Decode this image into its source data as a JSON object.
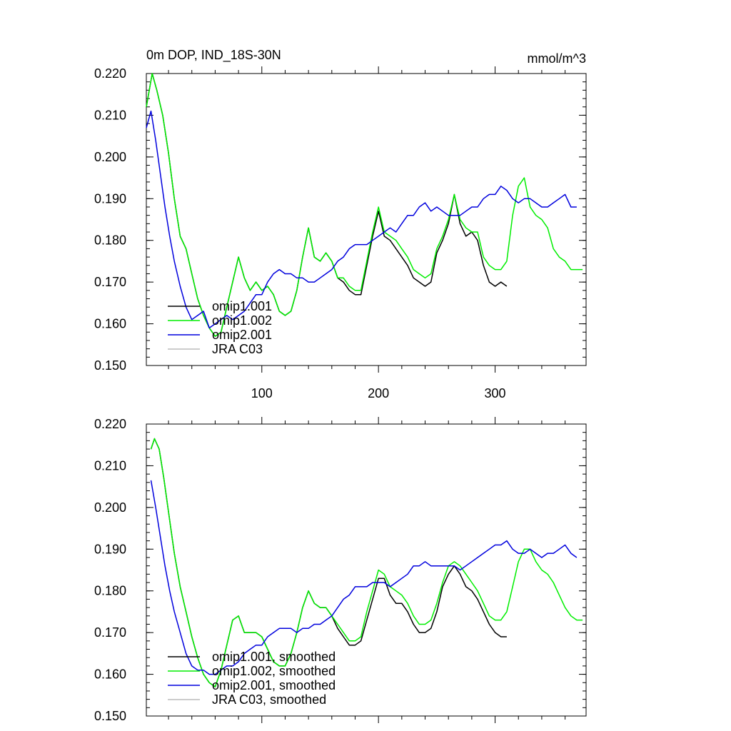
{
  "chart_data": [
    {
      "type": "line",
      "title": "0m DOP, IND_18S-30N",
      "units": "mmol/m^3",
      "xlim": [
        1,
        378
      ],
      "ylim": [
        0.15,
        0.22
      ],
      "xticks": [
        100,
        200,
        300
      ],
      "xtick_labels": [
        "100",
        "200",
        "300"
      ],
      "yticks": [
        0.15,
        0.16,
        0.17,
        0.18,
        0.19,
        0.2,
        0.21,
        0.22
      ],
      "ytick_labels": [
        "0.150",
        "0.160",
        "0.170",
        "0.180",
        "0.190",
        "0.200",
        "0.210",
        "0.220"
      ],
      "legend_position": "bottom-left",
      "series": [
        {
          "name": "omip1.001",
          "color": "#000000",
          "x": [
            1,
            6,
            10,
            15,
            20,
            25,
            30,
            35,
            40,
            45,
            50,
            55,
            60,
            65,
            70,
            75,
            80,
            85,
            90,
            95,
            100,
            105,
            110,
            115,
            120,
            125,
            130,
            135,
            140,
            145,
            150,
            155,
            160,
            165,
            170,
            175,
            180,
            185,
            190,
            195,
            200,
            205,
            210,
            215,
            220,
            225,
            230,
            235,
            240,
            245,
            250,
            255,
            260,
            265,
            270,
            275,
            280,
            285,
            290,
            295,
            300,
            305,
            310
          ],
          "y": [
            0.212,
            0.22,
            0.216,
            0.21,
            0.201,
            0.19,
            0.181,
            0.178,
            0.172,
            0.166,
            0.162,
            0.159,
            0.157,
            0.158,
            0.164,
            0.17,
            0.176,
            0.171,
            0.168,
            0.17,
            0.168,
            0.169,
            0.167,
            0.163,
            0.162,
            0.163,
            0.168,
            0.176,
            0.183,
            0.176,
            0.175,
            0.177,
            0.175,
            0.171,
            0.17,
            0.168,
            0.167,
            0.167,
            0.174,
            0.181,
            0.187,
            0.181,
            0.18,
            0.178,
            0.176,
            0.174,
            0.171,
            0.17,
            0.169,
            0.17,
            0.177,
            0.18,
            0.184,
            0.191,
            0.184,
            0.181,
            0.182,
            0.18,
            0.174,
            0.17,
            0.169,
            0.17,
            0.169
          ]
        },
        {
          "name": "omip1.002",
          "color": "#00ee00",
          "x": [
            1,
            6,
            10,
            15,
            20,
            25,
            30,
            35,
            40,
            45,
            50,
            55,
            60,
            65,
            70,
            75,
            80,
            85,
            90,
            95,
            100,
            105,
            110,
            115,
            120,
            125,
            130,
            135,
            140,
            145,
            150,
            155,
            160,
            165,
            170,
            175,
            180,
            185,
            190,
            195,
            200,
            205,
            210,
            215,
            220,
            225,
            230,
            235,
            240,
            245,
            250,
            255,
            260,
            265,
            270,
            275,
            280,
            285,
            290,
            295,
            300,
            305,
            310,
            315,
            320,
            325,
            330,
            335,
            340,
            345,
            350,
            355,
            360,
            365,
            370,
            375
          ],
          "y": [
            0.212,
            0.22,
            0.216,
            0.21,
            0.201,
            0.19,
            0.181,
            0.178,
            0.172,
            0.166,
            0.162,
            0.159,
            0.157,
            0.158,
            0.164,
            0.17,
            0.176,
            0.171,
            0.168,
            0.17,
            0.168,
            0.169,
            0.167,
            0.163,
            0.162,
            0.163,
            0.168,
            0.176,
            0.183,
            0.176,
            0.175,
            0.177,
            0.175,
            0.171,
            0.171,
            0.169,
            0.168,
            0.168,
            0.175,
            0.182,
            0.188,
            0.182,
            0.181,
            0.18,
            0.178,
            0.176,
            0.173,
            0.172,
            0.171,
            0.172,
            0.178,
            0.181,
            0.185,
            0.191,
            0.185,
            0.183,
            0.182,
            0.182,
            0.176,
            0.174,
            0.173,
            0.173,
            0.175,
            0.186,
            0.193,
            0.195,
            0.188,
            0.186,
            0.185,
            0.183,
            0.178,
            0.176,
            0.175,
            0.173,
            0.173,
            0.173
          ]
        },
        {
          "name": "omip2.001",
          "color": "#0000dd",
          "x": [
            1,
            5,
            9,
            13,
            17,
            21,
            25,
            30,
            35,
            40,
            45,
            50,
            55,
            60,
            65,
            70,
            75,
            80,
            85,
            90,
            95,
            100,
            105,
            110,
            115,
            120,
            125,
            130,
            135,
            140,
            145,
            150,
            155,
            160,
            165,
            170,
            175,
            180,
            185,
            190,
            195,
            200,
            205,
            210,
            215,
            220,
            225,
            230,
            235,
            240,
            245,
            250,
            255,
            260,
            265,
            270,
            275,
            280,
            285,
            290,
            295,
            300,
            305,
            310,
            315,
            320,
            325,
            330,
            335,
            340,
            345,
            350,
            355,
            360,
            365,
            370
          ],
          "y": [
            0.207,
            0.211,
            0.204,
            0.196,
            0.188,
            0.181,
            0.175,
            0.169,
            0.164,
            0.161,
            0.162,
            0.163,
            0.159,
            0.16,
            0.161,
            0.162,
            0.161,
            0.162,
            0.163,
            0.165,
            0.167,
            0.167,
            0.17,
            0.172,
            0.173,
            0.172,
            0.172,
            0.171,
            0.171,
            0.17,
            0.17,
            0.171,
            0.172,
            0.173,
            0.175,
            0.176,
            0.178,
            0.179,
            0.179,
            0.179,
            0.18,
            0.181,
            0.182,
            0.183,
            0.182,
            0.184,
            0.186,
            0.186,
            0.188,
            0.189,
            0.187,
            0.188,
            0.187,
            0.186,
            0.186,
            0.186,
            0.187,
            0.188,
            0.188,
            0.19,
            0.191,
            0.191,
            0.193,
            0.192,
            0.19,
            0.189,
            0.19,
            0.19,
            0.189,
            0.188,
            0.188,
            0.189,
            0.19,
            0.191,
            0.188,
            0.188
          ]
        },
        {
          "name": "JRA C03",
          "color": "#bbbbbb",
          "x": [],
          "y": []
        }
      ]
    },
    {
      "type": "line",
      "xlim": [
        1,
        378
      ],
      "ylim": [
        0.15,
        0.22
      ],
      "xticks": [
        100,
        200,
        300
      ],
      "yticks": [
        0.15,
        0.16,
        0.17,
        0.18,
        0.19,
        0.2,
        0.21,
        0.22
      ],
      "ytick_labels": [
        "0.150",
        "0.160",
        "0.170",
        "0.180",
        "0.190",
        "0.200",
        "0.210",
        "0.220"
      ],
      "legend_position": "bottom-left",
      "series": [
        {
          "name": "omip1.001, smoothed",
          "color": "#000000",
          "x": [
            5,
            8,
            12,
            16,
            20,
            25,
            30,
            35,
            40,
            45,
            50,
            55,
            60,
            65,
            70,
            75,
            80,
            85,
            90,
            95,
            100,
            105,
            110,
            115,
            120,
            125,
            130,
            135,
            140,
            145,
            150,
            155,
            160,
            165,
            170,
            175,
            180,
            185,
            190,
            195,
            200,
            205,
            210,
            215,
            220,
            225,
            230,
            235,
            240,
            245,
            250,
            255,
            260,
            265,
            270,
            275,
            280,
            285,
            290,
            295,
            300,
            305,
            310
          ],
          "y": [
            0.214,
            0.2165,
            0.214,
            0.207,
            0.199,
            0.189,
            0.181,
            0.175,
            0.169,
            0.164,
            0.16,
            0.158,
            0.157,
            0.161,
            0.167,
            0.173,
            0.174,
            0.17,
            0.17,
            0.17,
            0.169,
            0.166,
            0.163,
            0.162,
            0.162,
            0.165,
            0.17,
            0.176,
            0.18,
            0.177,
            0.176,
            0.176,
            0.174,
            0.171,
            0.169,
            0.167,
            0.167,
            0.168,
            0.173,
            0.178,
            0.183,
            0.183,
            0.179,
            0.177,
            0.177,
            0.175,
            0.172,
            0.17,
            0.17,
            0.171,
            0.175,
            0.181,
            0.184,
            0.186,
            0.184,
            0.181,
            0.18,
            0.178,
            0.175,
            0.172,
            0.17,
            0.169,
            0.169
          ]
        },
        {
          "name": "omip1.002, smoothed",
          "color": "#00ee00",
          "x": [
            5,
            8,
            12,
            16,
            20,
            25,
            30,
            35,
            40,
            45,
            50,
            55,
            60,
            65,
            70,
            75,
            80,
            85,
            90,
            95,
            100,
            105,
            110,
            115,
            120,
            125,
            130,
            135,
            140,
            145,
            150,
            155,
            160,
            165,
            170,
            175,
            180,
            185,
            190,
            195,
            200,
            205,
            210,
            215,
            220,
            225,
            230,
            235,
            240,
            245,
            250,
            255,
            260,
            265,
            270,
            275,
            280,
            285,
            290,
            295,
            300,
            305,
            310,
            315,
            320,
            325,
            330,
            335,
            340,
            345,
            350,
            355,
            360,
            365,
            370,
            375
          ],
          "y": [
            0.214,
            0.2165,
            0.214,
            0.207,
            0.199,
            0.189,
            0.181,
            0.175,
            0.169,
            0.164,
            0.16,
            0.158,
            0.157,
            0.161,
            0.167,
            0.173,
            0.174,
            0.17,
            0.17,
            0.17,
            0.169,
            0.166,
            0.163,
            0.162,
            0.162,
            0.165,
            0.17,
            0.176,
            0.18,
            0.177,
            0.176,
            0.176,
            0.174,
            0.172,
            0.17,
            0.168,
            0.168,
            0.169,
            0.175,
            0.18,
            0.185,
            0.184,
            0.181,
            0.18,
            0.179,
            0.177,
            0.174,
            0.172,
            0.172,
            0.173,
            0.177,
            0.182,
            0.186,
            0.187,
            0.186,
            0.184,
            0.182,
            0.18,
            0.177,
            0.174,
            0.173,
            0.173,
            0.175,
            0.181,
            0.187,
            0.19,
            0.19,
            0.187,
            0.185,
            0.184,
            0.182,
            0.179,
            0.176,
            0.174,
            0.173,
            0.173
          ]
        },
        {
          "name": "omip2.001, smoothed",
          "color": "#0000dd",
          "x": [
            5,
            9,
            13,
            17,
            21,
            25,
            30,
            35,
            40,
            45,
            50,
            55,
            60,
            65,
            70,
            75,
            80,
            85,
            90,
            95,
            100,
            105,
            110,
            115,
            120,
            125,
            130,
            135,
            140,
            145,
            150,
            155,
            160,
            165,
            170,
            175,
            180,
            185,
            190,
            195,
            200,
            205,
            210,
            215,
            220,
            225,
            230,
            235,
            240,
            245,
            250,
            255,
            260,
            265,
            270,
            275,
            280,
            285,
            290,
            295,
            300,
            305,
            310,
            315,
            320,
            325,
            330,
            335,
            340,
            345,
            350,
            355,
            360,
            365,
            370
          ],
          "y": [
            0.2065,
            0.2,
            0.193,
            0.186,
            0.18,
            0.175,
            0.17,
            0.165,
            0.162,
            0.161,
            0.161,
            0.16,
            0.16,
            0.161,
            0.162,
            0.162,
            0.163,
            0.165,
            0.166,
            0.167,
            0.167,
            0.169,
            0.17,
            0.171,
            0.171,
            0.171,
            0.17,
            0.171,
            0.171,
            0.172,
            0.172,
            0.173,
            0.174,
            0.176,
            0.178,
            0.179,
            0.181,
            0.181,
            0.181,
            0.182,
            0.182,
            0.182,
            0.181,
            0.182,
            0.183,
            0.184,
            0.186,
            0.186,
            0.187,
            0.186,
            0.186,
            0.186,
            0.186,
            0.186,
            0.185,
            0.186,
            0.187,
            0.188,
            0.189,
            0.19,
            0.191,
            0.191,
            0.192,
            0.19,
            0.189,
            0.189,
            0.19,
            0.189,
            0.188,
            0.189,
            0.189,
            0.19,
            0.191,
            0.189,
            0.188
          ]
        },
        {
          "name": "JRA C03, smoothed",
          "color": "#bbbbbb",
          "x": [],
          "y": []
        }
      ]
    }
  ]
}
